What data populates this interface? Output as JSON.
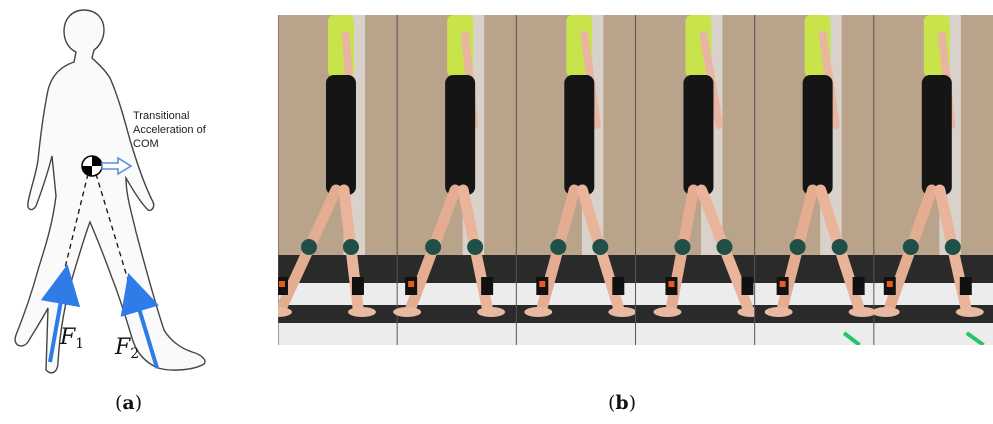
{
  "panel_a": {
    "annotation": {
      "line1": "Transitional",
      "line2": "Acceleration of",
      "line3": "COM"
    },
    "forces": [
      {
        "symbol": "F",
        "subscript": "1"
      },
      {
        "symbol": "F",
        "subscript": "2"
      }
    ],
    "caption": {
      "open": "(",
      "letter": "a",
      "close": ")"
    }
  },
  "panel_b": {
    "frame_count": 6,
    "caption": {
      "open": "(",
      "letter": "b",
      "close": ")"
    }
  },
  "colors": {
    "force_arrow": "#2f7be8",
    "accel_arrow": "#5b8fd9",
    "shirt": "#c9e34a",
    "shorts": "#151515",
    "wall": "#b9a38a",
    "floor_stripe": "#ececec",
    "floor_dark": "#2a2a2a",
    "marker": "#27c46a"
  }
}
